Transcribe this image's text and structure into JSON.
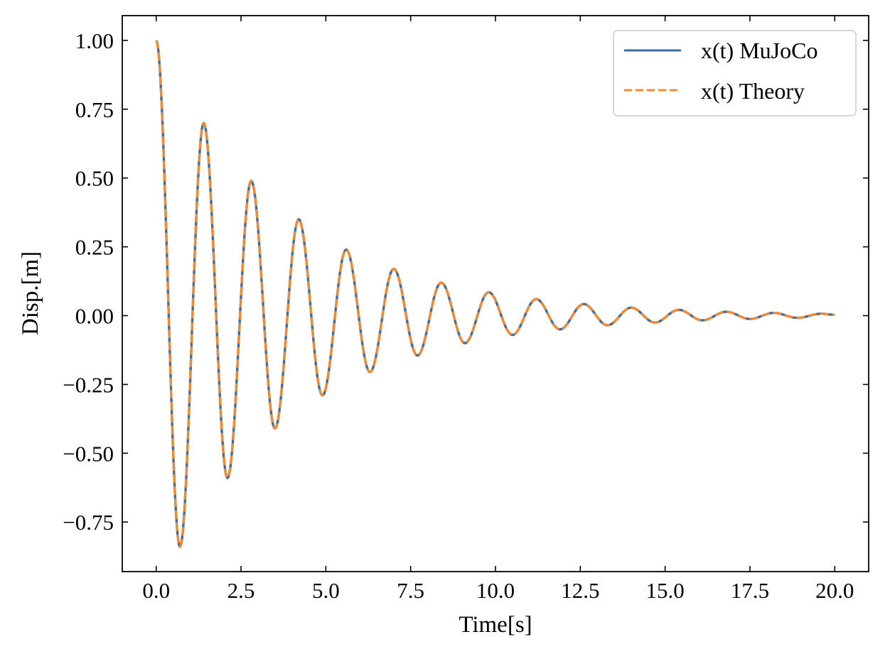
{
  "chart_data": {
    "type": "line",
    "title": "",
    "xlabel": "Time[s]",
    "ylabel": "Disp.[m]",
    "xlim": [
      -1.0,
      21.0
    ],
    "ylim": [
      -0.93,
      1.09
    ],
    "x_ticks": [
      0.0,
      2.5,
      5.0,
      7.5,
      10.0,
      12.5,
      15.0,
      17.5,
      20.0
    ],
    "x_tick_labels": [
      "0.0",
      "2.5",
      "5.0",
      "7.5",
      "10.0",
      "12.5",
      "15.0",
      "17.5",
      "20.0"
    ],
    "y_ticks": [
      -0.75,
      -0.5,
      -0.25,
      0.0,
      0.25,
      0.5,
      0.75,
      1.0
    ],
    "y_tick_labels": [
      "−0.75",
      "−0.50",
      "−0.25",
      "0.00",
      "0.25",
      "0.50",
      "0.75",
      "1.00"
    ],
    "grid": false,
    "legend_position": "top-right",
    "series": [
      {
        "name": "x(t) MuJoCo",
        "color": "#3a6ea5",
        "style": "solid",
        "x": [
          0.0,
          0.7,
          1.4,
          2.1,
          2.8,
          3.5,
          4.2,
          4.9,
          5.6,
          6.3,
          7.0,
          7.7,
          8.4,
          9.1,
          9.8,
          10.5,
          11.2,
          11.9,
          12.6,
          13.3,
          14.0,
          14.7,
          15.4,
          16.1,
          16.8,
          17.5,
          18.2,
          18.9,
          19.6,
          20.0
        ],
        "values": [
          1.0,
          -0.84,
          0.7,
          -0.59,
          0.49,
          -0.41,
          0.35,
          -0.29,
          0.24,
          -0.205,
          0.17,
          -0.145,
          0.12,
          -0.1,
          0.085,
          -0.07,
          0.06,
          -0.05,
          0.042,
          -0.035,
          0.029,
          -0.025,
          0.021,
          -0.017,
          0.014,
          -0.012,
          0.01,
          -0.008,
          0.007,
          0.003
        ]
      },
      {
        "name": "x(t) Theory",
        "color": "#f08a35",
        "style": "dashed",
        "x": [
          0.0,
          0.7,
          1.4,
          2.1,
          2.8,
          3.5,
          4.2,
          4.9,
          5.6,
          6.3,
          7.0,
          7.7,
          8.4,
          9.1,
          9.8,
          10.5,
          11.2,
          11.9,
          12.6,
          13.3,
          14.0,
          14.7,
          15.4,
          16.1,
          16.8,
          17.5,
          18.2,
          18.9,
          19.6,
          20.0
        ],
        "values": [
          1.0,
          -0.84,
          0.7,
          -0.59,
          0.49,
          -0.41,
          0.35,
          -0.29,
          0.24,
          -0.205,
          0.17,
          -0.145,
          0.12,
          -0.1,
          0.085,
          -0.07,
          0.06,
          -0.05,
          0.042,
          -0.035,
          0.029,
          -0.025,
          0.021,
          -0.017,
          0.014,
          -0.012,
          0.01,
          -0.008,
          0.007,
          0.003
        ]
      }
    ]
  }
}
